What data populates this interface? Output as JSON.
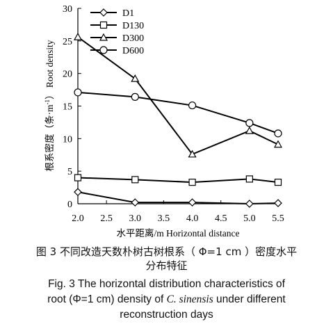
{
  "chart_data": {
    "type": "line",
    "ylabel_cn": "根系密度（条·m",
    "ylabel_sup": "-1",
    "ylabel_cn_close": "）",
    "ylabel_en": "Root density",
    "xlabel": "水平距离/m Horizontal distance",
    "xlim": [
      2.0,
      5.5
    ],
    "ylim": [
      0,
      30
    ],
    "xticks": [
      "2.0",
      "2.5",
      "3.0",
      "3.5",
      "4.0",
      "4.5",
      "5.0",
      "5.5"
    ],
    "yticks": [
      "0",
      "5",
      "10",
      "15",
      "20",
      "25",
      "30"
    ],
    "legend_position": "top-left",
    "x": [
      2.0,
      3.0,
      4.0,
      5.0,
      5.5
    ],
    "series": [
      {
        "name": "D1",
        "marker": "diamond",
        "values": [
          1.8,
          0.2,
          0.2,
          0.0,
          0.1
        ]
      },
      {
        "name": "D130",
        "marker": "square",
        "values": [
          4.0,
          3.7,
          3.3,
          3.8,
          3.3
        ]
      },
      {
        "name": "D300",
        "marker": "triangle",
        "values": [
          25.6,
          19.2,
          7.6,
          11.2,
          9.1
        ]
      },
      {
        "name": "D600",
        "marker": "circle",
        "values": [
          17.1,
          16.4,
          15.1,
          12.4,
          10.8
        ]
      }
    ]
  },
  "caption": {
    "cn_line1": "图 3  不同改造天数朴树古树根系（ Φ=1 cm ）密度水平",
    "cn_line2": "分布特征",
    "en_line1": "Fig. 3  The horizontal distribution characteristics of",
    "en_line2_pre": "root (Φ=1 cm) density of ",
    "en_line2_italic": "C. sinensis",
    "en_line2_post": " under different",
    "en_line3": "reconstruction days"
  }
}
